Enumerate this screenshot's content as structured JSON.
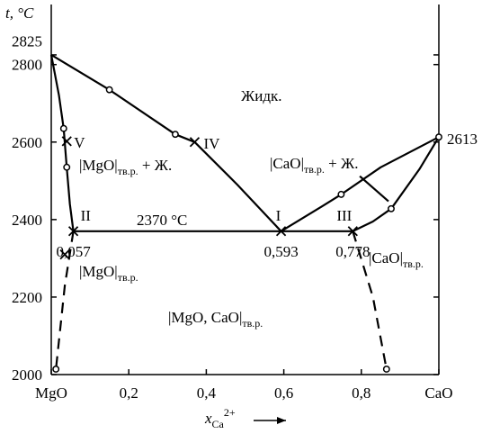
{
  "chart_data": {
    "type": "phase",
    "y_label": "t, °C",
    "x_label": {
      "text": "x",
      "sub": "Ca",
      "sup": "2+"
    },
    "xlim": [
      0,
      1
    ],
    "ylim": [
      2000,
      2955
    ],
    "xticks": [
      {
        "value": 0,
        "label": "MgO"
      },
      {
        "value": 0.2,
        "label": "0,2"
      },
      {
        "value": 0.4,
        "label": "0,4"
      },
      {
        "value": 0.6,
        "label": "0,6"
      },
      {
        "value": 0.8,
        "label": "0,8"
      },
      {
        "value": 1,
        "label": "CaO"
      }
    ],
    "yticks": [
      2000,
      2200,
      2400,
      2600,
      2800,
      2825
    ],
    "series": [
      {
        "style": "solid",
        "x": [
          0,
          0.15,
          0.32,
          0.37,
          0.48,
          0.593
        ],
        "values": [
          2825,
          2735,
          2620,
          2600,
          2490,
          2370
        ]
      },
      {
        "style": "solid",
        "x": [
          0.593,
          0.7,
          0.748,
          0.85,
          1
        ],
        "values": [
          2370,
          2435,
          2465,
          2535,
          2613
        ]
      },
      {
        "style": "solid",
        "x": [
          0.778,
          0.83,
          0.877,
          0.95,
          1
        ],
        "values": [
          2370,
          2395,
          2428,
          2530,
          2613
        ]
      },
      {
        "style": "solid",
        "x": [
          0,
          0.02,
          0.032,
          0.04,
          0.048,
          0.057
        ],
        "values": [
          2825,
          2720,
          2635,
          2535,
          2440,
          2370
        ]
      },
      {
        "style": "solid",
        "x": [
          0.057,
          0.778
        ],
        "values": [
          2370,
          2370
        ]
      },
      {
        "style": "solid",
        "x": [
          0.796,
          0.87
        ],
        "values": [
          2512,
          2447
        ]
      },
      {
        "style": "dashed",
        "x": [
          0.057,
          0.035,
          0.012
        ],
        "values": [
          2370,
          2230,
          2014
        ]
      },
      {
        "style": "dashed",
        "x": [
          0.778,
          0.83,
          0.865
        ],
        "values": [
          2370,
          2200,
          2014
        ]
      }
    ],
    "markers": [
      {
        "shape": "circle",
        "x": 0.15,
        "y": 2735
      },
      {
        "shape": "circle",
        "x": 0.32,
        "y": 2620
      },
      {
        "shape": "circle",
        "x": 0.032,
        "y": 2635
      },
      {
        "shape": "circle",
        "x": 0.04,
        "y": 2535
      },
      {
        "shape": "circle",
        "x": 0.748,
        "y": 2465
      },
      {
        "shape": "circle",
        "x": 0.877,
        "y": 2428
      },
      {
        "shape": "circle",
        "x": 1,
        "y": 2613
      },
      {
        "shape": "circle",
        "x": 0.012,
        "y": 2014
      },
      {
        "shape": "circle",
        "x": 0.865,
        "y": 2014
      },
      {
        "shape": "cross",
        "x": 0.035,
        "y": 2310
      },
      {
        "shape": "cross",
        "x": 0.04,
        "y": 2602,
        "label": "V"
      },
      {
        "shape": "cross",
        "x": 0.37,
        "y": 2600,
        "label": "IV"
      },
      {
        "shape": "cross",
        "x": 0.593,
        "y": 2370,
        "label": "I",
        "x_label": "0,593"
      },
      {
        "shape": "cross",
        "x": 0.057,
        "y": 2370,
        "label": "II",
        "x_label": "0,057"
      },
      {
        "shape": "cross",
        "x": 0.778,
        "y": 2370,
        "label": "III",
        "x_label": "0,778"
      }
    ],
    "annotations": [
      {
        "text": "Жидк."
      },
      {
        "text": "|MgO|",
        "sub": "тв.р.",
        "tail": " + Ж."
      },
      {
        "text": "|CaO|",
        "sub": "тв.р.",
        "tail": " + Ж."
      },
      {
        "text": "2370 °C"
      },
      {
        "text": "|MgO|",
        "sub": "тв.р."
      },
      {
        "text": "|CaO|",
        "sub": "тв.р."
      },
      {
        "text": "|MgO, CaO|",
        "sub": "тв.р."
      },
      {
        "text": "2613"
      }
    ]
  }
}
